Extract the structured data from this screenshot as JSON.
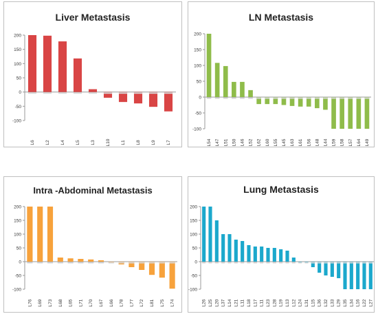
{
  "chart_data": [
    {
      "type": "bar",
      "title": "Liver Metastasis",
      "color": "#d94545",
      "categories": [
        "L6",
        "L2",
        "L4",
        "L5",
        "L3",
        "L10",
        "L1",
        "L8",
        "L9",
        "L7"
      ],
      "values": [
        200,
        198,
        178,
        118,
        10,
        -20,
        -35,
        -40,
        -52,
        -68
      ],
      "ylim": [
        -100,
        200
      ],
      "yticks": [
        -100,
        -50,
        0,
        50,
        100,
        150,
        200
      ],
      "grid": false,
      "xlabel": "",
      "ylabel": ""
    },
    {
      "type": "bar",
      "title": "LN Metastasis",
      "color": "#8fbc4a",
      "categories": [
        "L54",
        "L47",
        "L51",
        "L50",
        "L46",
        "L52",
        "L62",
        "L60",
        "L55",
        "L45",
        "L63",
        "L61",
        "L56",
        "L48",
        "L44",
        "L59",
        "L58",
        "L57",
        "L64",
        "L49"
      ],
      "values": [
        200,
        108,
        98,
        48,
        48,
        22,
        -22,
        -22,
        -22,
        -25,
        -28,
        -30,
        -30,
        -35,
        -40,
        -100,
        -100,
        -100,
        -100,
        -100
      ],
      "ylim": [
        -100,
        200
      ],
      "yticks": [
        -100,
        -50,
        0,
        50,
        100,
        150,
        200
      ],
      "grid": false,
      "xlabel": "",
      "ylabel": ""
    },
    {
      "type": "bar",
      "title": "Intra -Abdominal Metastasis",
      "color": "#f7a23c",
      "categories": [
        "L76",
        "L69",
        "L73",
        "L68",
        "L65",
        "L71",
        "L70",
        "L67",
        "L66",
        "L78",
        "L77",
        "L72",
        "L81",
        "L75",
        "L74"
      ],
      "values": [
        200,
        200,
        200,
        15,
        12,
        10,
        8,
        5,
        0,
        -10,
        -20,
        -30,
        -48,
        -58,
        -98
      ],
      "ylim": [
        -100,
        200
      ],
      "yticks": [
        -100,
        -50,
        0,
        50,
        100,
        150,
        200
      ],
      "grid": false,
      "xlabel": "",
      "ylabel": ""
    },
    {
      "type": "bar",
      "title": "Lung Metastasis",
      "color": "#1ba8cc",
      "categories": [
        "L26",
        "L25",
        "L20",
        "L37",
        "L14",
        "L21",
        "L11",
        "L18",
        "L17",
        "L11",
        "L23",
        "L28",
        "L19",
        "L13",
        "L12",
        "L24",
        "L31",
        "L15",
        "L36",
        "L32",
        "L33",
        "L29",
        "L35",
        "L34",
        "L16",
        "L22",
        "L27"
      ],
      "values": [
        200,
        200,
        150,
        100,
        100,
        80,
        75,
        60,
        55,
        55,
        50,
        50,
        45,
        40,
        15,
        0,
        0,
        -20,
        -40,
        -50,
        -55,
        -60,
        -100,
        -100,
        -100,
        -100,
        -100
      ],
      "ylim": [
        -100,
        200
      ],
      "yticks": [
        -100,
        -50,
        0,
        50,
        100,
        150,
        200
      ],
      "grid": false,
      "xlabel": "",
      "ylabel": ""
    }
  ]
}
